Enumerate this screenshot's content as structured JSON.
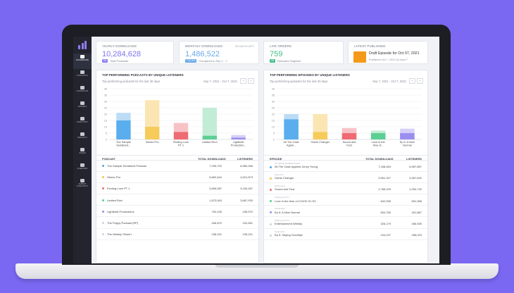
{
  "sidebar": {
    "items": [
      {
        "label": "DASHBOARD",
        "icon": "dashboard-icon",
        "active": true
      },
      {
        "label": "PODCASTS",
        "icon": "mic-icon"
      },
      {
        "label": "CAMPAIGNS",
        "icon": "campaign-icon"
      },
      {
        "label": "PROMOS",
        "icon": "megaphone-icon"
      },
      {
        "label": "INVENTORY",
        "icon": "inventory-icon"
      },
      {
        "label": "REPORTS",
        "icon": "reports-icon"
      },
      {
        "label": "USERS",
        "icon": "users-icon"
      },
      {
        "label": "AGENCIES",
        "icon": "agencies-icon"
      },
      {
        "label": "SUBMIT PODCASTS",
        "icon": "submit-icon"
      }
    ]
  },
  "kpis": {
    "yearly": {
      "label": "YEARLY DOWNLOADS",
      "value": "10,284,628",
      "badge": "24",
      "sub": "Total Podcasts"
    },
    "monthly": {
      "label": "MONTHLY DOWNLOADS",
      "right": "29 DAYS LEFT",
      "value": "1,486,522",
      "badge": "+12.5%",
      "sub": "Compared to Sep 1 - 7"
    },
    "live": {
      "label": "LIVE ORDERS",
      "value": "759",
      "badge": "25",
      "sub": "Episodes Targeted"
    },
    "latest": {
      "label": "LATEST PUBLISHED",
      "title": "Draft Episode for Oct 07, 2021",
      "sub": "Published Oct 7, 2021 by Kyra F."
    }
  },
  "panels": {
    "podcasts": {
      "title": "TOP PERFORMING PODCASTS BY UNIQUE LISTENERS",
      "subtitle": "Top performing podcasts for the last 30 days",
      "date_range": "Sep 7, 2021 - Oct 7, 2021",
      "table": {
        "headers": {
          "name": "PODCAST",
          "downloads": "TOTAL DOWNLOADS",
          "listeners": "LISTENERS"
        },
        "rows": [
          {
            "name": "The Sample Serialized Podcast",
            "downloads": "7,295,702",
            "listeners": "6,589,456",
            "color": "#4ba8e8"
          },
          {
            "name": "Stereo Pro",
            "downloads": "5,662,644",
            "listeners": "4,621,873",
            "color": "#f5c34d"
          },
          {
            "name": "Finding Love PT 1",
            "downloads": "3,659,087",
            "listeners": "3,150,457",
            "color": "#ef6b73"
          },
          {
            "name": "Limited Run!",
            "downloads": "1,873,543",
            "listeners": "3,867,933",
            "color": "#5ccf92"
          },
          {
            "name": "Lightbulb Productions",
            "downloads": "752,433",
            "listeners": "436,570",
            "color": "#9a8ef0"
          },
          {
            "name": "The Puppy Podcast (RP)",
            "downloads": "406,870",
            "listeners": "431,651",
            "color": "#cfd2da"
          },
          {
            "name": "The Weekly Shiow'l",
            "downloads": "236,431",
            "listeners": "195,221",
            "color": "#cfd2da"
          }
        ]
      }
    },
    "episodes": {
      "title": "TOP PERFORMING EPISODES BY UNIQUE LISTENERS",
      "subtitle": "Top performing episodes for the last 30 days",
      "date_range": "Sep 7, 2021 - Oct 7, 2021",
      "table": {
        "headers": {
          "name": "EPISODE",
          "downloads": "TOTAL DOWNLOADS",
          "listeners": "LISTENERS"
        },
        "rows": [
          {
            "podcast": "The Sample Serialized Podcast",
            "name": "06 The Case Against Jonny Young",
            "downloads": "7,168,464",
            "listeners": "6,587,857",
            "color": "#4ba8e8"
          },
          {
            "podcast": "Stereo Pro",
            "name": "Game Changer",
            "downloads": "3,961,327",
            "listeners": "3,367,642",
            "color": "#f5c34d"
          },
          {
            "podcast": "Finding Love",
            "name": "Sound and Fest",
            "downloads": "1,766,229",
            "listeners": "1,254,732",
            "color": "#ef6b73"
          },
          {
            "podcast": "Finding Love PT 1",
            "name": "Love in the time of COVID S1 E3",
            "downloads": "842,536",
            "listeners": "651,356",
            "color": "#5ccf92"
          },
          {
            "podcast": "Limited Run!",
            "name": "Ep 6: A New Normal",
            "downloads": "504,783",
            "listeners": "491,867",
            "color": "#9a8ef0"
          },
          {
            "podcast": "Finding Love PT 2",
            "name": "Entertainment Weekly",
            "downloads": "326,179",
            "listeners": "306,539",
            "color": "#cfd2da"
          },
          {
            "podcast": "Limited Run!",
            "name": "Ep 5: Saying Goodbye",
            "downloads": "194,237",
            "listeners": "185,023",
            "color": "#cfd2da"
          }
        ]
      }
    }
  },
  "chart_data": [
    {
      "type": "bar",
      "categories": [
        "The Sample Serialized...",
        "Stereo Pro",
        "Finding Love PT 1",
        "Limited Run!",
        "Lightbulb Production..."
      ],
      "series": [
        {
          "values": [
            15,
            10,
            6,
            3,
            1.5
          ],
          "colors": [
            "#5aaeed",
            "#f6cb5a",
            "#ef6b73",
            "#5ccf92",
            "#9a8ef0"
          ]
        },
        {
          "values": [
            6,
            21,
            7,
            22,
            2
          ],
          "colors": [
            "#bcdcf6",
            "#fbe6b3",
            "#f7c2c6",
            "#c2ecd6",
            "#d6d0f8"
          ]
        }
      ],
      "stacked": true,
      "y_ticks": [
        "0",
        "5",
        "10",
        "15",
        "20",
        "25",
        "30",
        "35",
        "40"
      ],
      "ylim": [
        0,
        40
      ],
      "grid": true
    },
    {
      "type": "bar",
      "categories": [
        "06 The Case Again...",
        "Game Changer",
        "Sound and Fest",
        "Love in the time of...",
        "Ep 6: A New Normal"
      ],
      "series": [
        {
          "values": [
            16,
            6,
            5,
            5,
            5
          ],
          "colors": [
            "#5aaeed",
            "#f6cb5a",
            "#ef6b73",
            "#5ccf92",
            "#9a8ef0"
          ]
        },
        {
          "values": [
            4,
            14,
            4,
            2,
            3.5
          ],
          "colors": [
            "#bcdcf6",
            "#fbe6b3",
            "#f7c2c6",
            "#c2ecd6",
            "#d6d0f8"
          ]
        }
      ],
      "stacked": true,
      "y_ticks": [
        "0",
        "5",
        "10",
        "15",
        "20",
        "25",
        "30",
        "35",
        "40"
      ],
      "ylim": [
        0,
        40
      ],
      "grid": true
    }
  ]
}
